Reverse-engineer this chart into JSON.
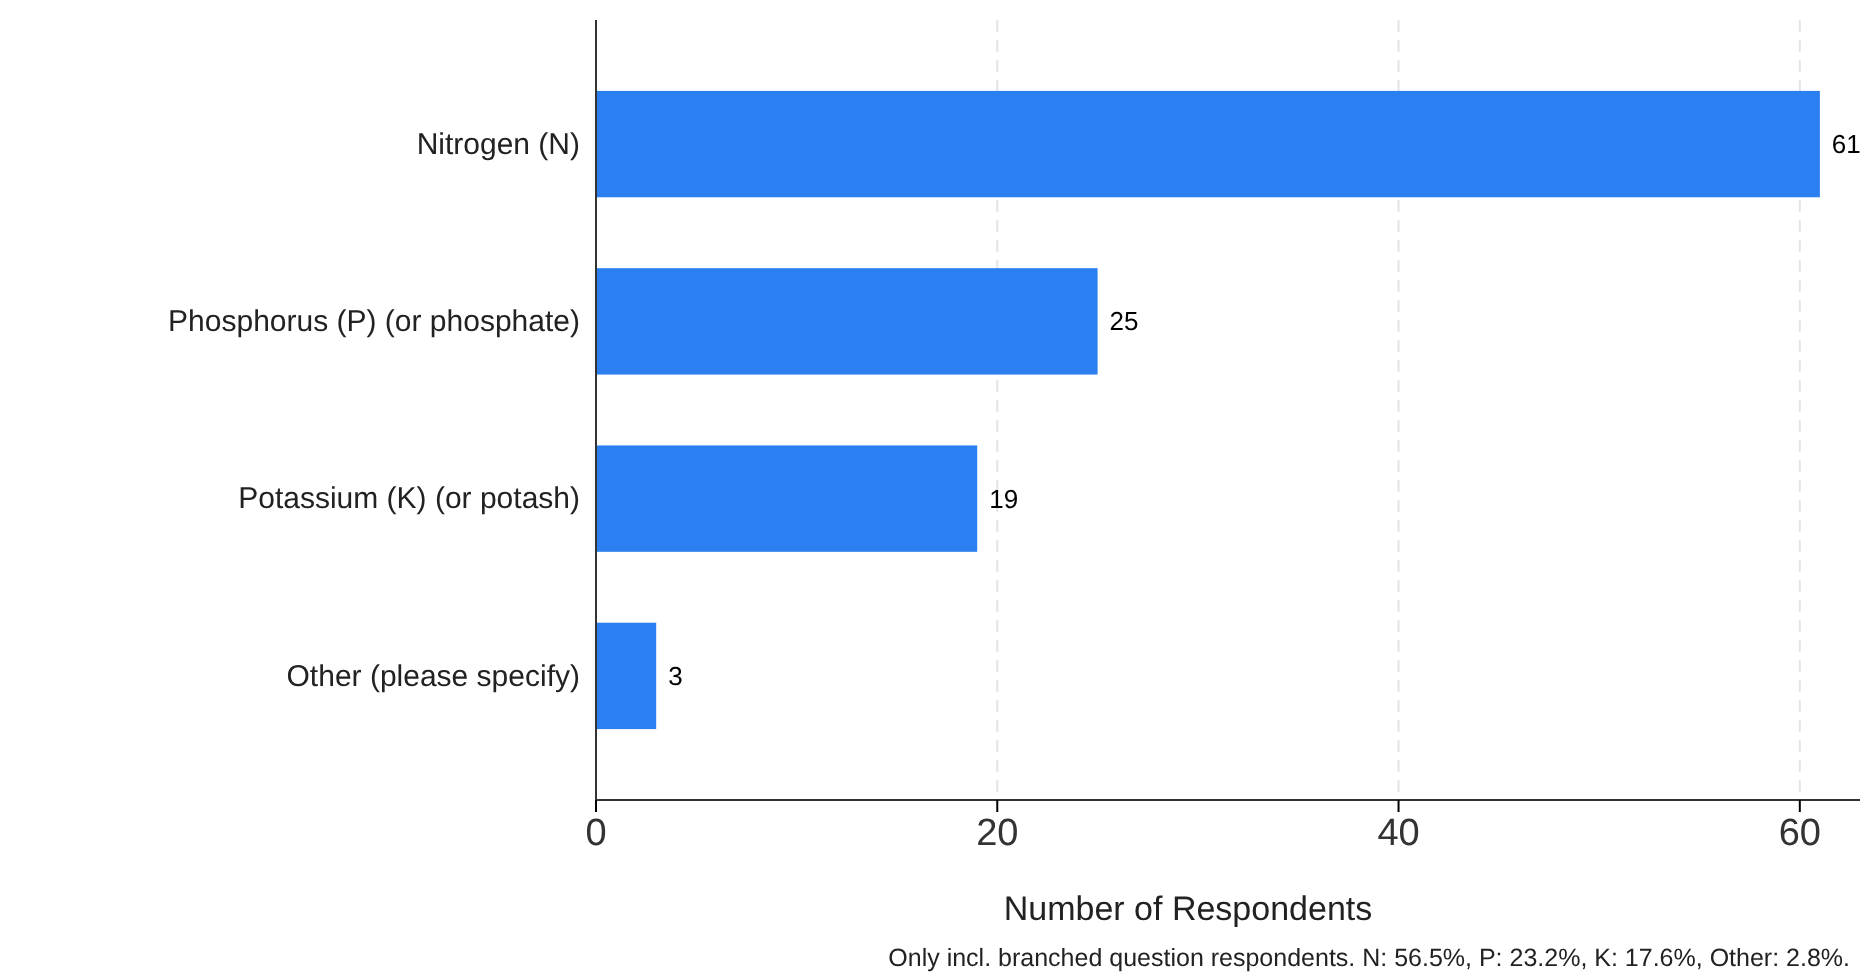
{
  "chart_data": {
    "type": "bar",
    "orientation": "horizontal",
    "categories": [
      "Nitrogen (N)",
      "Phosphorus (P) (or phosphate)",
      "Potassium (K) (or potash)",
      "Other (please specify)"
    ],
    "values": [
      61,
      25,
      19,
      3
    ],
    "color": "#2b7ff0",
    "xlim": [
      0,
      63
    ],
    "xticks": [
      0,
      20,
      40,
      60
    ],
    "grid": "x",
    "data_labels": true,
    "xlabel": "Number of Respondents",
    "annotations": [
      "Only incl. branched question respondents. N: 56.5%, P: 23.2%, K: 17.6%, Other: 2.8%."
    ]
  }
}
